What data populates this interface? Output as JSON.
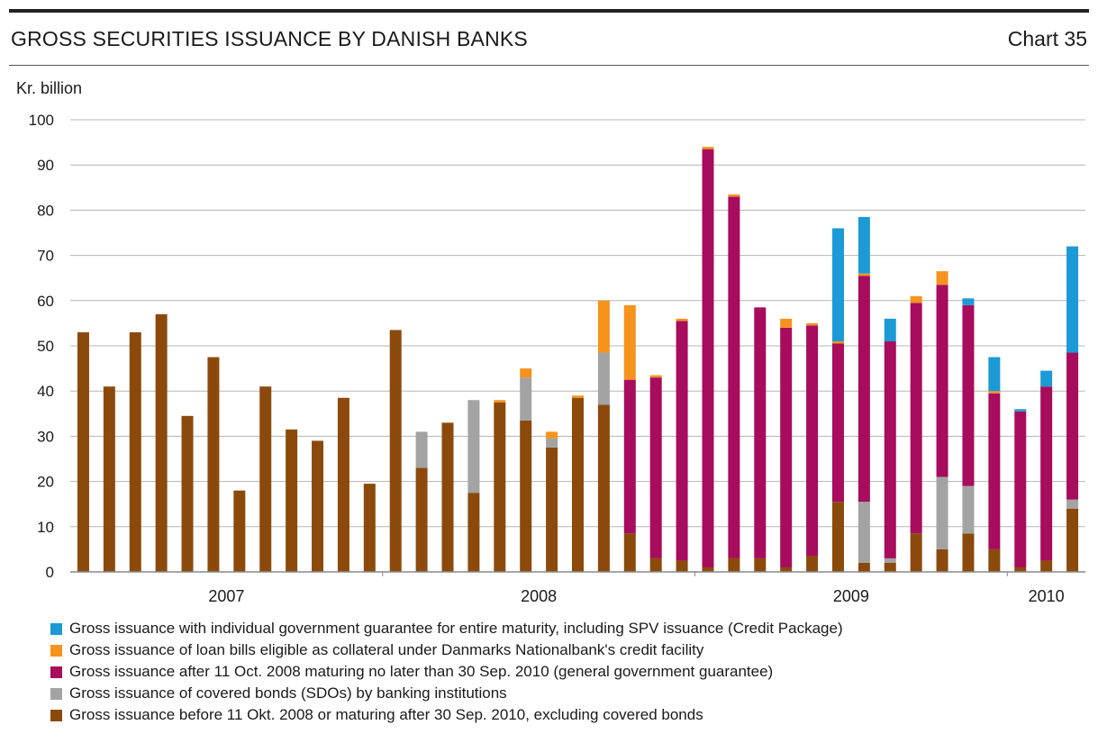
{
  "header": {
    "title": "GROSS SECURITIES ISSUANCE BY DANISH BANKS",
    "chart_number": "Chart 35"
  },
  "chart_data": {
    "type": "bar",
    "stacked": true,
    "ylabel": "Kr. billion",
    "ylim": [
      0,
      100
    ],
    "yticks": [
      0,
      10,
      20,
      30,
      40,
      50,
      60,
      70,
      80,
      90,
      100
    ],
    "grid": true,
    "legend_position": "bottom",
    "year_labels": [
      {
        "label": "2007",
        "bar_start": 0,
        "bar_end": 11
      },
      {
        "label": "2008",
        "bar_start": 12,
        "bar_end": 23
      },
      {
        "label": "2009",
        "bar_start": 24,
        "bar_end": 35
      },
      {
        "label": "2010",
        "bar_start": 36,
        "bar_end": 38
      }
    ],
    "series": [
      {
        "name": "Gross issuance before 11 Okt. 2008 or maturing after 30 Sep. 2010, excluding covered bonds",
        "color": "#8b4a0c",
        "values": [
          53,
          41,
          53,
          57,
          34.5,
          47.5,
          18,
          41,
          31.5,
          29,
          38.5,
          19.5,
          53.5,
          23,
          33,
          17.5,
          37.5,
          33.5,
          27.5,
          38.5,
          37,
          8.5,
          3,
          2.5,
          1,
          3,
          3,
          1,
          3.5,
          15.5,
          2,
          2,
          8.5,
          5,
          8.5,
          5,
          1,
          2.5,
          14
        ]
      },
      {
        "name": "Gross issuance of covered bonds (SDOs) by banking institutions",
        "color": "#a3a3a3",
        "values": [
          0,
          0,
          0,
          0,
          0,
          0,
          0,
          0,
          0,
          0,
          0,
          0,
          0,
          8,
          0,
          20.5,
          0,
          9.5,
          2,
          0,
          11.5,
          0,
          0,
          0,
          0,
          0,
          0,
          0,
          0,
          0,
          13.5,
          1,
          0,
          16,
          10.5,
          0,
          0,
          0,
          2
        ]
      },
      {
        "name": "Gross issuance after 11 Oct. 2008 maturing no later than 30 Sep. 2010 (general government guarantee)",
        "color": "#a80c5c",
        "values": [
          0,
          0,
          0,
          0,
          0,
          0,
          0,
          0,
          0,
          0,
          0,
          0,
          0,
          0,
          0,
          0,
          0,
          0,
          0,
          0,
          0,
          34,
          40,
          53,
          92.5,
          80,
          55.5,
          53,
          51,
          35,
          50,
          48,
          51,
          42.5,
          40,
          34.5,
          34.5,
          38.5,
          32.5
        ]
      },
      {
        "name": "Gross issuance of loan bills eligible as collateral under Danmarks Nationalbank's credit facility",
        "color": "#f5931e",
        "values": [
          0,
          0,
          0,
          0,
          0,
          0,
          0,
          0,
          0,
          0,
          0,
          0,
          0,
          0,
          0,
          0,
          0.5,
          2,
          1.5,
          0.5,
          11.5,
          16.5,
          0.5,
          0.5,
          0.5,
          0.5,
          0,
          2,
          0.5,
          0.5,
          0.5,
          0,
          1.5,
          3,
          0,
          0.5,
          0,
          0,
          0
        ]
      },
      {
        "name": "Gross issuance with individual government guarantee for entire maturity, including SPV issuance (Credit Package)",
        "color": "#1c9ad6",
        "values": [
          0,
          0,
          0,
          0,
          0,
          0,
          0,
          0,
          0,
          0,
          0,
          0,
          0,
          0,
          0,
          0,
          0,
          0,
          0,
          0,
          0,
          0,
          0,
          0,
          0,
          0,
          0,
          0,
          0,
          25,
          12.5,
          5,
          0,
          0,
          1.5,
          7.5,
          0.5,
          3.5,
          23.5
        ]
      }
    ]
  },
  "legend": [
    {
      "label": "Gross issuance with individual government guarantee for entire maturity, including SPV issuance (Credit Package)",
      "color": "#1c9ad6"
    },
    {
      "label": "Gross issuance of loan bills eligible as collateral under Danmarks Nationalbank's credit facility",
      "color": "#f5931e"
    },
    {
      "label": "Gross issuance after 11 Oct. 2008 maturing no later than 30 Sep. 2010 (general government guarantee)",
      "color": "#a80c5c"
    },
    {
      "label": "Gross issuance of covered bonds (SDOs) by banking institutions",
      "color": "#a3a3a3"
    },
    {
      "label": "Gross issuance before 11 Okt. 2008 or maturing after 30 Sep. 2010, excluding covered bonds",
      "color": "#8b4a0c"
    }
  ]
}
